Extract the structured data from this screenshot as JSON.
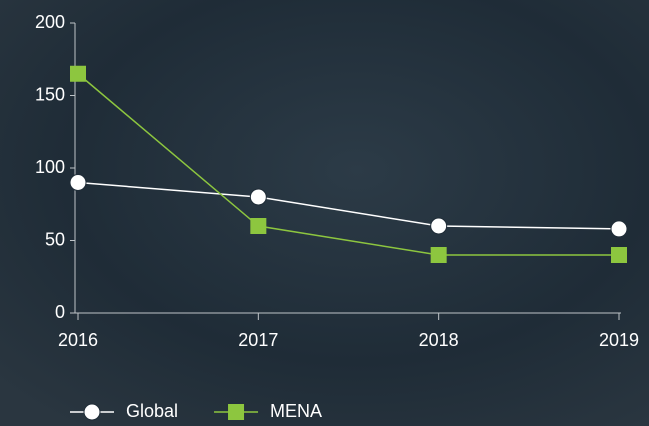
{
  "chart_data": {
    "type": "line",
    "categories": [
      "2016",
      "2017",
      "2018",
      "2019"
    ],
    "series": [
      {
        "name": "Global",
        "color": "#ffffff",
        "marker": "circle",
        "values": [
          90,
          80,
          60,
          58
        ]
      },
      {
        "name": "MENA",
        "color": "#8dc63f",
        "marker": "square",
        "values": [
          165,
          60,
          40,
          40
        ]
      }
    ],
    "ylim": [
      0,
      200
    ],
    "yticks": [
      0,
      50,
      100,
      150,
      200
    ],
    "grid": false,
    "legend": "bottom"
  }
}
